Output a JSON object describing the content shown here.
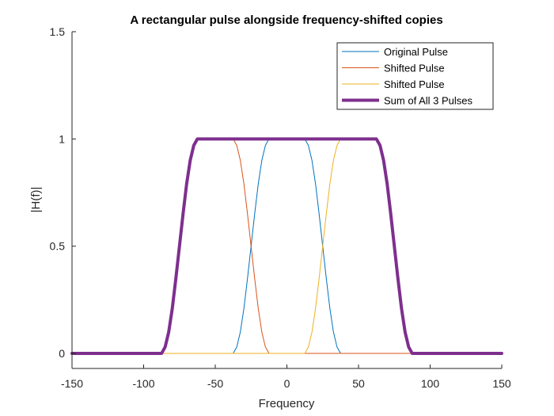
{
  "chart_data": {
    "type": "line",
    "title": "A rectangular pulse alongside frequency-shifted copies",
    "xlabel": "Frequency",
    "ylabel": "|H(f)|",
    "xlim": [
      -150,
      150
    ],
    "ylim": [
      -0.07,
      1.5
    ],
    "xticks": [
      -150,
      -100,
      -50,
      0,
      50,
      100,
      150
    ],
    "xtick_labels": [
      "-150",
      "-100",
      "-50",
      "0",
      "50",
      "100",
      "150"
    ],
    "yticks": [
      0,
      0.5,
      1,
      1.5
    ],
    "ytick_labels": [
      "0",
      "0.5",
      "1",
      "1.5"
    ],
    "grid": false,
    "legend_position": "top-right",
    "series": [
      {
        "name": "Original Pulse",
        "color": "#0072BD",
        "width": 1,
        "x": [
          -150,
          -37.5,
          -35,
          -32.5,
          -30,
          -27.5,
          -25,
          -22.5,
          -20,
          -17.5,
          -15,
          -12.5,
          12.5,
          15,
          17.5,
          20,
          22.5,
          25,
          27.5,
          30,
          32.5,
          35,
          37.5,
          150
        ],
        "y": [
          0,
          0,
          0.03,
          0.1,
          0.21,
          0.35,
          0.5,
          0.65,
          0.79,
          0.9,
          0.97,
          1,
          1,
          0.97,
          0.9,
          0.79,
          0.65,
          0.5,
          0.35,
          0.21,
          0.1,
          0.03,
          0,
          0
        ]
      },
      {
        "name": "Shifted Pulse",
        "color": "#D95319",
        "width": 1,
        "x": [
          -150,
          -87.5,
          -85,
          -82.5,
          -80,
          -77.5,
          -75,
          -72.5,
          -70,
          -67.5,
          -65,
          -62.5,
          -37.5,
          -35,
          -32.5,
          -30,
          -27.5,
          -25,
          -22.5,
          -20,
          -17.5,
          -15,
          -12.5,
          150
        ],
        "y": [
          0,
          0,
          0.03,
          0.1,
          0.21,
          0.35,
          0.5,
          0.65,
          0.79,
          0.9,
          0.97,
          1,
          1,
          0.97,
          0.9,
          0.79,
          0.65,
          0.5,
          0.35,
          0.21,
          0.1,
          0.03,
          0,
          0
        ]
      },
      {
        "name": "Shifted Pulse",
        "color": "#EDB120",
        "width": 1,
        "x": [
          -150,
          12.5,
          15,
          17.5,
          20,
          22.5,
          25,
          27.5,
          30,
          32.5,
          35,
          37.5,
          62.5,
          65,
          67.5,
          70,
          72.5,
          75,
          77.5,
          80,
          82.5,
          85,
          87.5,
          150
        ],
        "y": [
          0,
          0,
          0.03,
          0.1,
          0.21,
          0.35,
          0.5,
          0.65,
          0.79,
          0.9,
          0.97,
          1,
          1,
          0.97,
          0.9,
          0.79,
          0.65,
          0.5,
          0.35,
          0.21,
          0.1,
          0.03,
          0,
          0
        ]
      },
      {
        "name": "Sum of All 3 Pulses",
        "color": "#7E2F8E",
        "width": 4,
        "x": [
          -150,
          -87.5,
          -85,
          -82.5,
          -80,
          -77.5,
          -75,
          -72.5,
          -70,
          -67.5,
          -65,
          -62.5,
          62.5,
          65,
          67.5,
          70,
          72.5,
          75,
          77.5,
          80,
          82.5,
          85,
          87.5,
          150
        ],
        "y": [
          0,
          0,
          0.03,
          0.1,
          0.21,
          0.35,
          0.5,
          0.65,
          0.79,
          0.9,
          0.97,
          1,
          1,
          0.97,
          0.9,
          0.79,
          0.65,
          0.5,
          0.35,
          0.21,
          0.1,
          0.03,
          0,
          0
        ]
      }
    ]
  }
}
